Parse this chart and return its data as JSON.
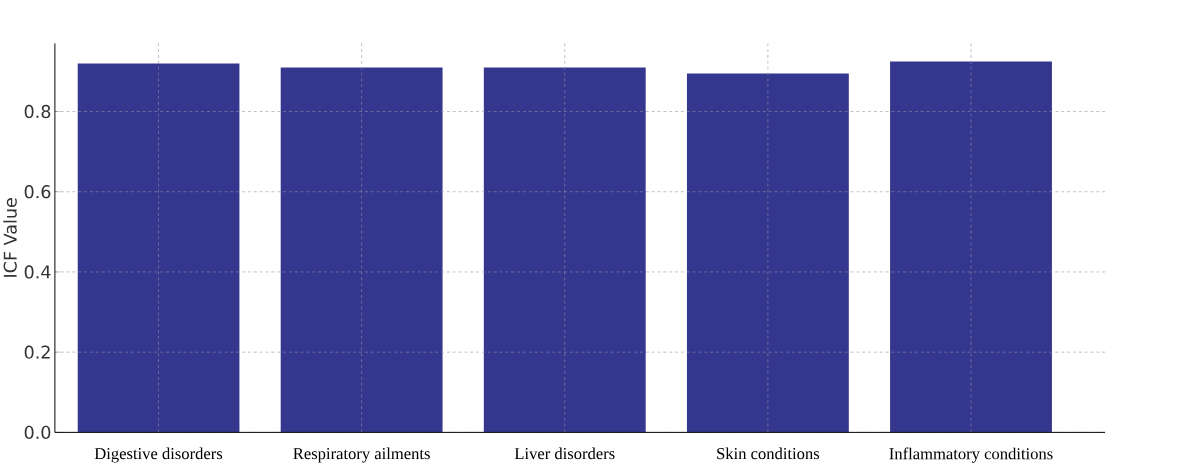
{
  "chart_data": {
    "type": "bar",
    "ylabel": "ICF Value",
    "categories": [
      "Digestive disorders",
      "Respiratory ailments",
      "Liver disorders",
      "Skin conditions",
      "Inflammatory conditions"
    ],
    "values": [
      0.92,
      0.91,
      0.91,
      0.895,
      0.925
    ],
    "color": "#35378f",
    "ylim": [
      0,
      0.97
    ],
    "yticks": [
      {
        "value": 0,
        "label": "0.0"
      },
      {
        "value": 0.2,
        "label": "0.2"
      },
      {
        "value": 0.4,
        "label": "0.4"
      },
      {
        "value": 0.6,
        "label": "0.6"
      },
      {
        "value": 0.8,
        "label": "0.8"
      }
    ],
    "grid": true
  }
}
